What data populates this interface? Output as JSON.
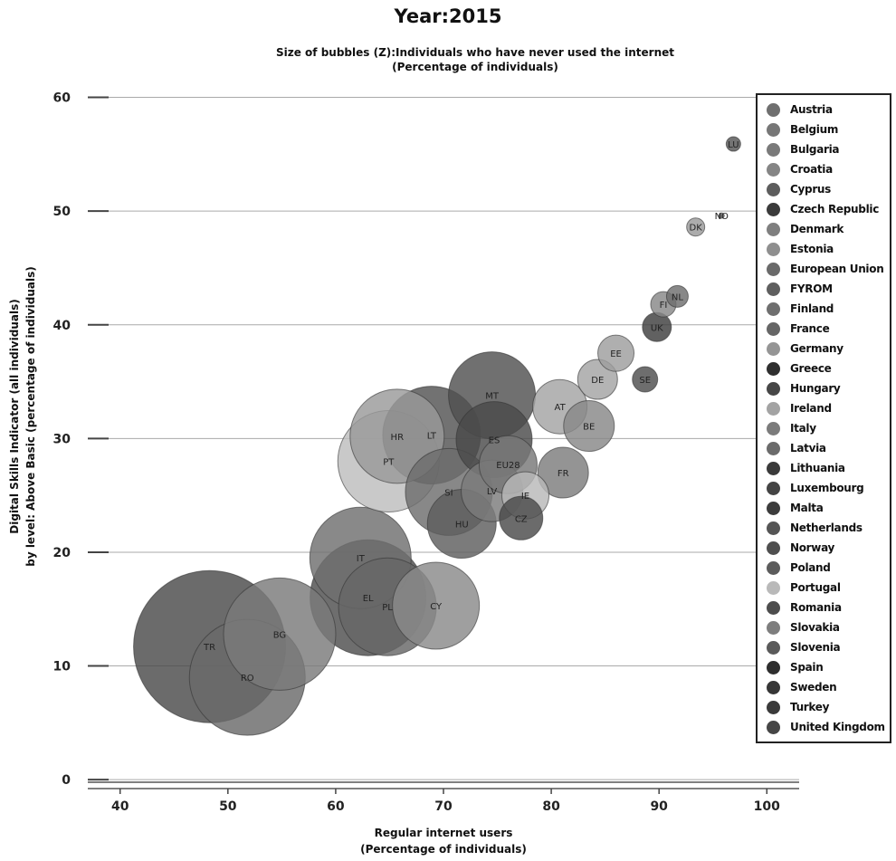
{
  "chart_data": {
    "type": "scatter",
    "title": "Year:2015",
    "subtitle_line1": "Size of bubbles (Z):Individuals who have never used the internet",
    "subtitle_line2": "(Percentage of individuals)",
    "xlabel_line1": "Regular internet users",
    "xlabel_line2": "(Percentage of individuals)",
    "ylabel_line1": "Digital Skills Indicator (all individuals)",
    "ylabel_line2": "by level: Above Basic (percentage of individuals)",
    "xlim": [
      37,
      103
    ],
    "ylim": [
      -1.5,
      61
    ],
    "xticks": [
      40,
      50,
      60,
      70,
      80,
      90,
      100
    ],
    "yticks": [
      0,
      10,
      20,
      30,
      40,
      50,
      60
    ],
    "grid": true,
    "legend_position": "right",
    "points": [
      {
        "code": "TR",
        "x": 48.3,
        "y": 11.7,
        "z": 42,
        "color": "#4a4a4a"
      },
      {
        "code": "RO",
        "x": 51.8,
        "y": 9.0,
        "z": 32,
        "color": "#6a6a6a"
      },
      {
        "code": "BG",
        "x": 54.8,
        "y": 12.8,
        "z": 31,
        "color": "#7a7a7a"
      },
      {
        "code": "IT",
        "x": 62.3,
        "y": 19.5,
        "z": 28,
        "color": "#6f6f6f"
      },
      {
        "code": "EL",
        "x": 63.0,
        "y": 16.0,
        "z": 32,
        "color": "#4e4e4e"
      },
      {
        "code": "PL",
        "x": 64.8,
        "y": 15.2,
        "z": 27,
        "color": "#666666"
      },
      {
        "code": "CY",
        "x": 69.3,
        "y": 15.3,
        "z": 24,
        "color": "#8a8a8a"
      },
      {
        "code": "PT",
        "x": 64.9,
        "y": 28.0,
        "z": 28,
        "color": "#bdbdbd"
      },
      {
        "code": "HR",
        "x": 65.7,
        "y": 30.2,
        "z": 26,
        "color": "#9a9a9a"
      },
      {
        "code": "LT",
        "x": 68.9,
        "y": 30.3,
        "z": 27,
        "color": "#535353"
      },
      {
        "code": "SI",
        "x": 70.5,
        "y": 25.3,
        "z": 24,
        "color": "#6e6e6e"
      },
      {
        "code": "HU",
        "x": 71.7,
        "y": 22.5,
        "z": 19,
        "color": "#5e5e5e"
      },
      {
        "code": "MT",
        "x": 74.5,
        "y": 33.8,
        "z": 24,
        "color": "#505050"
      },
      {
        "code": "ES",
        "x": 74.7,
        "y": 29.9,
        "z": 21,
        "color": "#4a4a4a"
      },
      {
        "code": "LV",
        "x": 74.5,
        "y": 25.4,
        "z": 17,
        "color": "#7b7b7b"
      },
      {
        "code": "EU28",
        "x": 76.0,
        "y": 27.7,
        "z": 16,
        "color": "#777777"
      },
      {
        "code": "IE",
        "x": 77.6,
        "y": 25.0,
        "z": 13,
        "color": "#b8b8b8"
      },
      {
        "code": "CZ",
        "x": 77.2,
        "y": 23.0,
        "z": 12,
        "color": "#4a4a4a"
      },
      {
        "code": "FR",
        "x": 81.1,
        "y": 27.0,
        "z": 14,
        "color": "#7d7d7d"
      },
      {
        "code": "AT",
        "x": 80.8,
        "y": 32.8,
        "z": 15,
        "color": "#a4a4a4"
      },
      {
        "code": "BE",
        "x": 83.5,
        "y": 31.1,
        "z": 14,
        "color": "#888888"
      },
      {
        "code": "DE",
        "x": 84.3,
        "y": 35.2,
        "z": 11,
        "color": "#a4a4a4"
      },
      {
        "code": "EE",
        "x": 86.0,
        "y": 37.5,
        "z": 10,
        "color": "#9e9e9e"
      },
      {
        "code": "SE",
        "x": 88.7,
        "y": 35.2,
        "z": 7,
        "color": "#4e4e4e"
      },
      {
        "code": "UK",
        "x": 89.8,
        "y": 39.8,
        "z": 8,
        "color": "#3e3e3e"
      },
      {
        "code": "FI",
        "x": 90.4,
        "y": 41.8,
        "z": 7,
        "color": "#888888"
      },
      {
        "code": "NL",
        "x": 91.7,
        "y": 42.5,
        "z": 6,
        "color": "#6e6e6e"
      },
      {
        "code": "DK",
        "x": 93.4,
        "y": 48.6,
        "z": 5,
        "color": "#9a9a9a"
      },
      {
        "code": "NO",
        "x": 95.8,
        "y": 49.6,
        "z": 1.5,
        "color": "#5e5e5e"
      },
      {
        "code": "LU",
        "x": 96.9,
        "y": 55.9,
        "z": 4,
        "color": "#555555"
      }
    ],
    "legend": [
      {
        "label": "Austria",
        "color": "#6f6f6f"
      },
      {
        "label": "Belgium",
        "color": "#777777"
      },
      {
        "label": "Bulgaria",
        "color": "#7a7a7a"
      },
      {
        "label": "Croatia",
        "color": "#858585"
      },
      {
        "label": "Cyprus",
        "color": "#5d5d5d"
      },
      {
        "label": "Czech Republic",
        "color": "#3b3b3b"
      },
      {
        "label": "Denmark",
        "color": "#7f7f7f"
      },
      {
        "label": "Estonia",
        "color": "#8f8f8f"
      },
      {
        "label": "European Union",
        "color": "#6a6a6a"
      },
      {
        "label": "FYROM",
        "color": "#5f5f5f"
      },
      {
        "label": "Finland",
        "color": "#6f6f6f"
      },
      {
        "label": "France",
        "color": "#666666"
      },
      {
        "label": "Germany",
        "color": "#959595"
      },
      {
        "label": "Greece",
        "color": "#2f2f2f"
      },
      {
        "label": "Hungary",
        "color": "#474747"
      },
      {
        "label": "Ireland",
        "color": "#a3a3a3"
      },
      {
        "label": "Italy",
        "color": "#7b7b7b"
      },
      {
        "label": "Latvia",
        "color": "#6b6b6b"
      },
      {
        "label": "Lithuania",
        "color": "#3a3a3a"
      },
      {
        "label": "Luxembourg",
        "color": "#444444"
      },
      {
        "label": "Malta",
        "color": "#3c3c3c"
      },
      {
        "label": "Netherlands",
        "color": "#555555"
      },
      {
        "label": "Norway",
        "color": "#4f4f4f"
      },
      {
        "label": "Poland",
        "color": "#5c5c5c"
      },
      {
        "label": "Portugal",
        "color": "#b9b9b9"
      },
      {
        "label": "Romania",
        "color": "#4d4d4d"
      },
      {
        "label": "Slovakia",
        "color": "#7e7e7e"
      },
      {
        "label": "Slovenia",
        "color": "#5a5a5a"
      },
      {
        "label": "Spain",
        "color": "#2e2e2e"
      },
      {
        "label": "Sweden",
        "color": "#363636"
      },
      {
        "label": "Turkey",
        "color": "#3a3a3a"
      },
      {
        "label": "United Kingdom",
        "color": "#464646"
      }
    ]
  }
}
